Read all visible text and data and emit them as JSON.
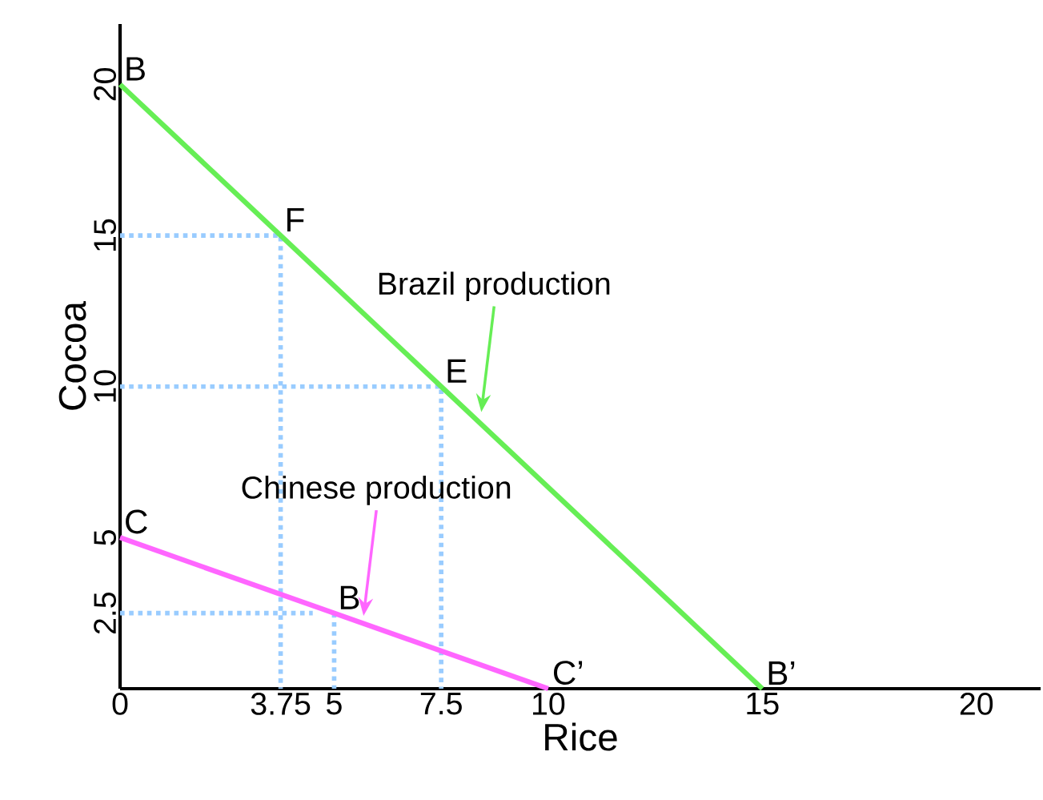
{
  "chart_data": {
    "type": "line",
    "xlabel": "Rice",
    "ylabel": "Cocoa",
    "xlim": [
      0,
      21.5
    ],
    "ylim": [
      0,
      22
    ],
    "xticks": [
      0,
      3.75,
      5,
      7.5,
      10,
      15,
      20
    ],
    "yticks": [
      2.5,
      5,
      10,
      15,
      20
    ],
    "series": [
      {
        "color": "#99ccff",
        "line_style": "dotted",
        "x": [
          0,
          3.75,
          3.75
        ],
        "values": [
          15,
          15,
          0
        ]
      },
      {
        "color": "#99ccff",
        "line_style": "dotted",
        "x": [
          0,
          7.5,
          7.5
        ],
        "values": [
          10,
          10,
          0
        ]
      },
      {
        "color": "#99ccff",
        "line_style": "dotted",
        "x": [
          0,
          4.5
        ],
        "values": [
          2.5,
          2.5
        ]
      },
      {
        "color": "#99ccff",
        "line_style": "dotted",
        "x": [
          5,
          5
        ],
        "values": [
          2.5,
          0
        ]
      },
      {
        "name": "Brazil production",
        "color": "#66ee55",
        "x": [
          0,
          15
        ],
        "values": [
          20,
          0
        ]
      },
      {
        "name": "Chinese production",
        "color": "#ff66ff",
        "x": [
          0,
          10
        ],
        "values": [
          5,
          0
        ]
      }
    ],
    "annotations": [
      {
        "text": "B",
        "x": 0,
        "y": 20
      },
      {
        "text": "F",
        "x": 3.75,
        "y": 15
      },
      {
        "text": "E",
        "x": 7.5,
        "y": 10
      },
      {
        "text": "C",
        "x": 0,
        "y": 5
      },
      {
        "text": "B",
        "x": 5,
        "y": 2.5
      },
      {
        "text": "C’",
        "x": 10,
        "y": 0
      },
      {
        "text": "B’",
        "x": 15,
        "y": 0
      }
    ]
  }
}
